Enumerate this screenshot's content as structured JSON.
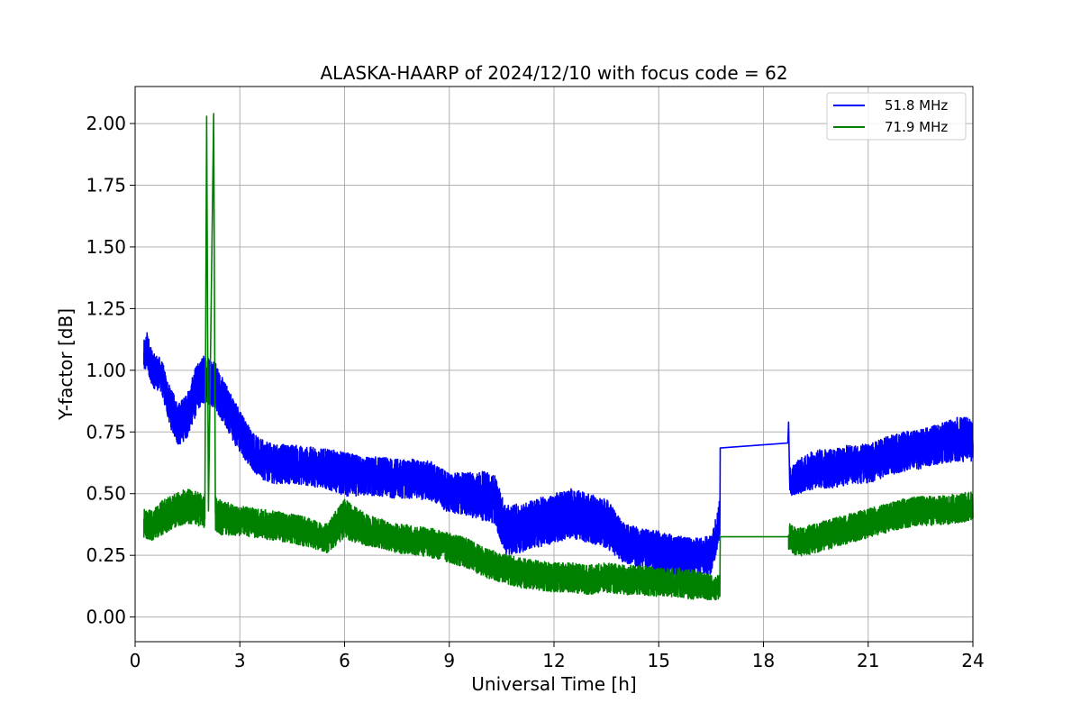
{
  "chart_data": {
    "type": "line",
    "title": "ALASKA-HAARP of 2024/12/10 with focus code = 62",
    "xlabel": "Universal Time [h]",
    "ylabel": "Y-factor [dB]",
    "xlim": [
      0,
      24
    ],
    "ylim": [
      -0.1,
      2.15
    ],
    "xticks": [
      0,
      3,
      6,
      9,
      12,
      15,
      18,
      21,
      24
    ],
    "xtick_labels": [
      "0",
      "3",
      "6",
      "9",
      "12",
      "15",
      "18",
      "21",
      "24"
    ],
    "yticks": [
      0.0,
      0.25,
      0.5,
      0.75,
      1.0,
      1.25,
      1.5,
      1.75,
      2.0
    ],
    "ytick_labels": [
      "0.00",
      "0.25",
      "0.50",
      "0.75",
      "1.00",
      "1.25",
      "1.50",
      "1.75",
      "2.00"
    ],
    "grid": true,
    "legend_position": "top-right",
    "series": [
      {
        "name": "51.8 MHz",
        "color": "#0000ff",
        "x": [
          0.25,
          0.35,
          0.5,
          0.75,
          1.0,
          1.25,
          1.5,
          1.75,
          2.0,
          2.25,
          2.5,
          2.75,
          3.0,
          3.25,
          3.5,
          3.75,
          4.0,
          4.5,
          5.0,
          5.5,
          6.0,
          6.5,
          7.0,
          7.5,
          8.0,
          8.5,
          9.0,
          9.5,
          10.0,
          10.3,
          10.6,
          11.0,
          11.5,
          12.0,
          12.5,
          13.0,
          13.5,
          14.0,
          14.5,
          15.0,
          15.5,
          16.0,
          16.5,
          16.75,
          16.76,
          18.7,
          18.72,
          18.75,
          19.0,
          19.5,
          20.0,
          20.5,
          21.0,
          21.5,
          22.0,
          22.5,
          23.0,
          23.5,
          24.0
        ],
        "y": [
          1.05,
          1.08,
          1.0,
          0.98,
          0.85,
          0.78,
          0.82,
          0.92,
          0.97,
          0.95,
          0.88,
          0.82,
          0.75,
          0.7,
          0.65,
          0.63,
          0.62,
          0.62,
          0.61,
          0.6,
          0.58,
          0.57,
          0.57,
          0.56,
          0.56,
          0.55,
          0.5,
          0.5,
          0.49,
          0.48,
          0.35,
          0.36,
          0.38,
          0.4,
          0.42,
          0.4,
          0.38,
          0.3,
          0.28,
          0.26,
          0.25,
          0.24,
          0.25,
          0.4,
          0.685,
          0.705,
          0.79,
          0.55,
          0.57,
          0.6,
          0.6,
          0.62,
          0.62,
          0.65,
          0.67,
          0.68,
          0.7,
          0.72,
          0.72
        ],
        "noise": [
          0.07,
          0.08,
          0.07,
          0.07,
          0.08,
          0.09,
          0.09,
          0.1,
          0.1,
          0.1,
          0.09,
          0.09,
          0.09,
          0.08,
          0.08,
          0.08,
          0.08,
          0.08,
          0.08,
          0.08,
          0.09,
          0.08,
          0.08,
          0.08,
          0.08,
          0.08,
          0.08,
          0.09,
          0.1,
          0.1,
          0.1,
          0.1,
          0.1,
          0.1,
          0.1,
          0.1,
          0.1,
          0.08,
          0.08,
          0.09,
          0.08,
          0.08,
          0.08,
          0.08,
          0.0,
          0.0,
          0.0,
          0.06,
          0.07,
          0.08,
          0.08,
          0.08,
          0.08,
          0.08,
          0.08,
          0.08,
          0.08,
          0.09,
          0.09
        ]
      },
      {
        "name": "71.9 MHz",
        "color": "#008000",
        "x": [
          0.25,
          0.5,
          0.75,
          1.0,
          1.25,
          1.5,
          1.75,
          2.0,
          2.05,
          2.1,
          2.25,
          2.3,
          2.5,
          3.0,
          3.5,
          4.0,
          4.5,
          5.0,
          5.5,
          6.0,
          6.5,
          7.0,
          7.5,
          8.0,
          8.5,
          9.0,
          9.5,
          10.0,
          10.5,
          11.0,
          11.5,
          12.0,
          12.5,
          13.0,
          13.5,
          14.0,
          14.5,
          15.0,
          15.5,
          16.0,
          16.5,
          16.75,
          16.76,
          18.7,
          18.72,
          19.0,
          19.5,
          20.0,
          20.5,
          21.0,
          21.5,
          22.0,
          22.5,
          23.0,
          23.5,
          24.0
        ],
        "y": [
          0.38,
          0.37,
          0.4,
          0.42,
          0.44,
          0.45,
          0.44,
          0.43,
          2.03,
          0.43,
          2.04,
          0.42,
          0.4,
          0.39,
          0.38,
          0.37,
          0.36,
          0.34,
          0.32,
          0.4,
          0.36,
          0.34,
          0.32,
          0.31,
          0.3,
          0.28,
          0.26,
          0.22,
          0.2,
          0.18,
          0.17,
          0.16,
          0.16,
          0.15,
          0.16,
          0.15,
          0.15,
          0.14,
          0.14,
          0.13,
          0.12,
          0.12,
          0.325,
          0.325,
          0.33,
          0.3,
          0.32,
          0.34,
          0.36,
          0.38,
          0.4,
          0.42,
          0.43,
          0.43,
          0.44,
          0.45
        ],
        "noise": [
          0.06,
          0.06,
          0.07,
          0.07,
          0.07,
          0.07,
          0.07,
          0.07,
          0.0,
          0.07,
          0.0,
          0.07,
          0.07,
          0.06,
          0.06,
          0.06,
          0.06,
          0.06,
          0.06,
          0.08,
          0.07,
          0.06,
          0.06,
          0.06,
          0.06,
          0.06,
          0.06,
          0.06,
          0.06,
          0.06,
          0.06,
          0.06,
          0.06,
          0.06,
          0.06,
          0.06,
          0.06,
          0.06,
          0.06,
          0.06,
          0.05,
          0.05,
          0.0,
          0.0,
          0.06,
          0.06,
          0.06,
          0.06,
          0.06,
          0.06,
          0.06,
          0.06,
          0.06,
          0.06,
          0.06,
          0.06
        ]
      }
    ]
  }
}
